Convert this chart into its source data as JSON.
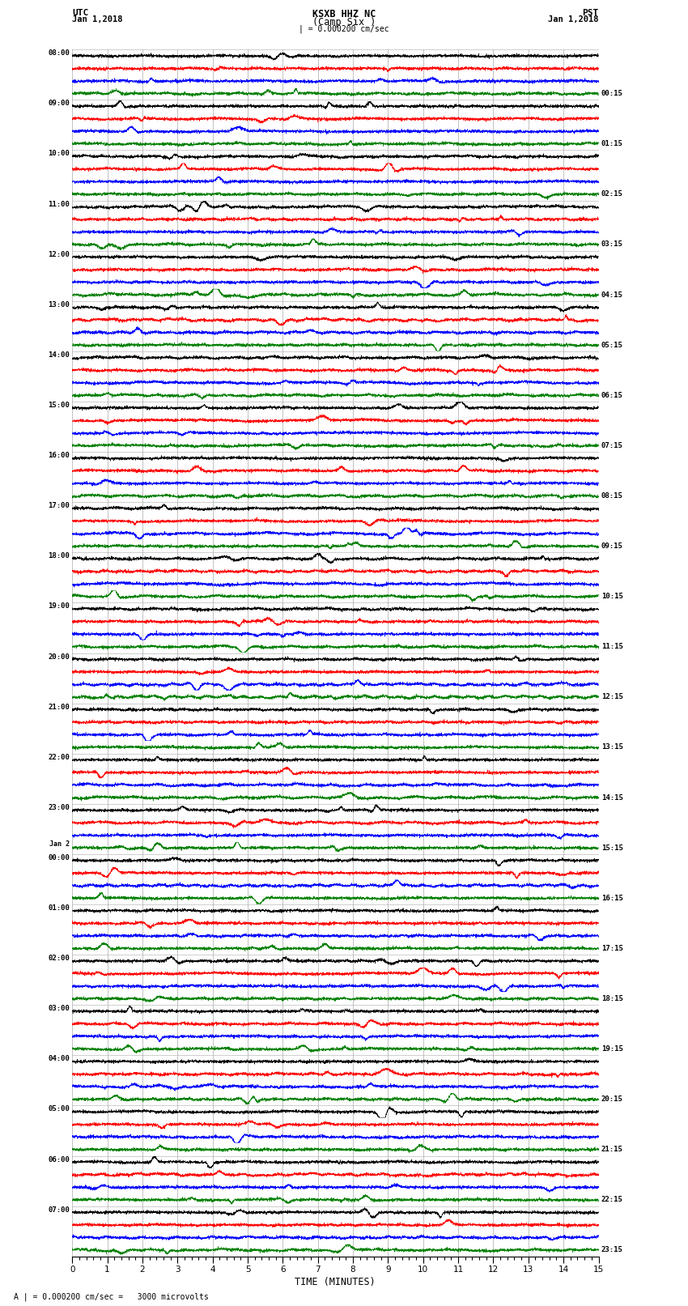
{
  "title_line1": "KSXB HHZ NC",
  "title_line2": "(Camp Six )",
  "scale_bar": "| = 0.000200 cm/sec",
  "label_utc": "UTC",
  "label_pst": "PST",
  "label_date_left": "Jan 1,2018",
  "label_date_right": "Jan 1,2018",
  "xlabel": "TIME (MINUTES)",
  "footnote": "A | = 0.000200 cm/sec =   3000 microvolts",
  "left_times_utc": [
    "08:00",
    "09:00",
    "10:00",
    "11:00",
    "12:00",
    "13:00",
    "14:00",
    "15:00",
    "16:00",
    "17:00",
    "18:00",
    "19:00",
    "20:00",
    "21:00",
    "22:00",
    "23:00",
    "Jan 2\n00:00",
    "01:00",
    "02:00",
    "03:00",
    "04:00",
    "05:00",
    "06:00",
    "07:00"
  ],
  "right_times_pst": [
    "00:15",
    "01:15",
    "02:15",
    "03:15",
    "04:15",
    "05:15",
    "06:15",
    "07:15",
    "08:15",
    "09:15",
    "10:15",
    "11:15",
    "12:15",
    "13:15",
    "14:15",
    "15:15",
    "16:15",
    "17:15",
    "18:15",
    "19:15",
    "20:15",
    "21:15",
    "22:15",
    "23:15"
  ],
  "colors": [
    "black",
    "red",
    "blue",
    "green"
  ],
  "n_hours": 24,
  "traces_per_hour": 4,
  "minutes": 15,
  "bg_color": "white",
  "vline_color": "#aaaaaa",
  "hline_color": "#aaaaaa",
  "amplitude_scale": 0.38,
  "line_width": 0.4,
  "xmin": 0,
  "xmax": 15,
  "xtick_major": 1,
  "xtick_minor": 0.2,
  "samples_per_trace": 4500
}
